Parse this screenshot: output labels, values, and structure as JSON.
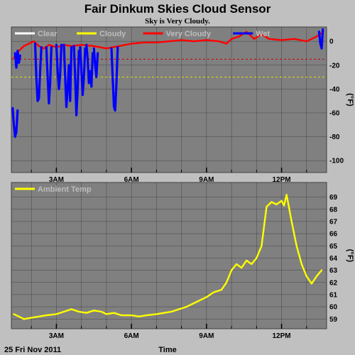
{
  "title": "Fair Dinkum Skies Cloud Sensor",
  "subtitle": "Sky is Very Cloudy.",
  "footer": {
    "date": "25 Fri Nov 2011",
    "xlabel": "Time"
  },
  "colors": {
    "background": "#c0c0c0",
    "plot_bg": "#808080",
    "clear": "#ffffff",
    "cloudy": "#ffff00",
    "very_cloudy": "#ff0000",
    "wet": "#0000ff",
    "ambient": "#ffff00",
    "threshold_red": "#c80000",
    "threshold_yellow": "#e0e000"
  },
  "chart_data": [
    {
      "type": "line",
      "ylabel": "(°F)",
      "ylim": [
        -110,
        12
      ],
      "yticks": [
        0,
        -20,
        -40,
        -60,
        -80,
        -100
      ],
      "xlim": [
        1.2,
        13.8
      ],
      "xticks": [
        {
          "x": 3,
          "label": "3AM"
        },
        {
          "x": 6,
          "label": "6AM"
        },
        {
          "x": 9,
          "label": "9AM"
        },
        {
          "x": 12,
          "label": "12PM"
        }
      ],
      "grid": true,
      "legend_position": "top",
      "legend": [
        {
          "name": "Clear",
          "color_key": "clear"
        },
        {
          "name": "Cloudy",
          "color_key": "cloudy"
        },
        {
          "name": "Very Cloudy",
          "color_key": "very_cloudy"
        },
        {
          "name": "Wet",
          "color_key": "wet"
        }
      ],
      "thresholds": [
        {
          "y": -15,
          "color_key": "threshold_red"
        },
        {
          "y": -30,
          "color_key": "threshold_yellow"
        }
      ],
      "series": [
        {
          "name": "Very Cloudy",
          "color_key": "very_cloudy",
          "x": [
            1.3,
            1.5,
            1.7,
            1.9,
            2.1,
            2.3,
            2.5,
            2.7,
            3.0,
            3.3,
            3.6,
            4.0,
            4.5,
            5.0,
            5.5,
            6.0,
            6.5,
            7.0,
            7.5,
            8.0,
            8.5,
            9.0,
            9.5,
            9.8,
            10.0,
            10.3,
            10.6,
            10.9,
            11.2,
            11.5,
            12.0,
            12.5,
            13.0,
            13.4,
            13.6
          ],
          "y": [
            -14,
            -8,
            -4,
            -2,
            0,
            -4,
            -6,
            -3,
            -5,
            -3,
            -4,
            -3,
            -4,
            -6,
            -4,
            -2,
            -1,
            -1,
            0,
            1,
            0,
            1,
            0,
            -2,
            2,
            4,
            8,
            2,
            6,
            2,
            1,
            2,
            0,
            4,
            7
          ]
        },
        {
          "name": "Wet",
          "color_key": "wet",
          "segments": [
            {
              "x": [
                1.25,
                1.3,
                1.35,
                1.4,
                1.45
              ],
              "y": [
                -56,
                -70,
                -80,
                -76,
                -58
              ]
            },
            {
              "x": [
                1.35,
                1.4,
                1.45,
                1.5,
                1.55
              ],
              "y": [
                -10,
                -22,
                -8,
                -18,
                -12
              ]
            },
            {
              "x": [
                2.15,
                2.2,
                2.25,
                2.3,
                2.35,
                2.4
              ],
              "y": [
                -2,
                -30,
                -50,
                -48,
                -25,
                -5
              ]
            },
            {
              "x": [
                2.6,
                2.65,
                2.7,
                2.75,
                2.8
              ],
              "y": [
                -5,
                -30,
                -52,
                -35,
                -5
              ]
            },
            {
              "x": [
                3.0,
                3.05,
                3.1,
                3.15,
                3.2
              ],
              "y": [
                -3,
                -25,
                -40,
                -28,
                -3
              ]
            },
            {
              "x": [
                3.3,
                3.35,
                3.4,
                3.45,
                3.5,
                3.55,
                3.6
              ],
              "y": [
                -3,
                -30,
                -55,
                -40,
                -20,
                -50,
                -5
              ]
            },
            {
              "x": [
                3.7,
                3.75,
                3.8,
                3.85,
                3.9
              ],
              "y": [
                -4,
                -30,
                -62,
                -40,
                -8
              ]
            },
            {
              "x": [
                3.95,
                4.0,
                4.05,
                4.1,
                4.15
              ],
              "y": [
                -5,
                -25,
                -45,
                -30,
                -6
              ]
            },
            {
              "x": [
                4.2,
                4.25,
                4.3,
                4.35,
                4.4,
                4.45
              ],
              "y": [
                -3,
                -15,
                -35,
                -25,
                -38,
                -10
              ]
            },
            {
              "x": [
                4.5,
                4.55,
                4.6,
                4.65
              ],
              "y": [
                -6,
                -20,
                -30,
                -10
              ]
            },
            {
              "x": [
                5.2,
                5.25,
                5.3,
                5.35,
                5.4,
                5.45
              ],
              "y": [
                -6,
                -30,
                -55,
                -58,
                -35,
                -5
              ]
            },
            {
              "x": [
                13.5,
                13.55,
                13.6,
                13.65
              ],
              "y": [
                8,
                -2,
                -6,
                10
              ]
            }
          ]
        }
      ]
    },
    {
      "type": "line",
      "ylabel": "(°F)",
      "ylim": [
        58.2,
        70.2
      ],
      "yticks": [
        69,
        68,
        67,
        66,
        65,
        64,
        63,
        62,
        61,
        60,
        59
      ],
      "xlim": [
        1.2,
        13.8
      ],
      "xticks": [
        {
          "x": 3,
          "label": "3AM"
        },
        {
          "x": 6,
          "label": "6AM"
        },
        {
          "x": 9,
          "label": "9AM"
        },
        {
          "x": 12,
          "label": "12PM"
        }
      ],
      "grid": true,
      "legend_position": "top-left",
      "legend": [
        {
          "name": "Ambient Temp",
          "color_key": "ambient"
        }
      ],
      "series": [
        {
          "name": "Ambient Temp",
          "color_key": "ambient",
          "x": [
            1.3,
            1.5,
            1.7,
            2.0,
            2.3,
            2.6,
            3.0,
            3.3,
            3.6,
            3.9,
            4.2,
            4.5,
            4.8,
            5.0,
            5.3,
            5.6,
            6.0,
            6.3,
            6.6,
            7.0,
            7.3,
            7.6,
            7.9,
            8.2,
            8.5,
            8.8,
            9.0,
            9.3,
            9.6,
            9.8,
            10.0,
            10.2,
            10.4,
            10.6,
            10.8,
            11.0,
            11.2,
            11.4,
            11.6,
            11.8,
            12.0,
            12.1,
            12.2,
            12.4,
            12.6,
            12.8,
            13.0,
            13.2,
            13.4,
            13.6
          ],
          "y": [
            59.4,
            59.2,
            59.0,
            59.1,
            59.2,
            59.3,
            59.4,
            59.6,
            59.8,
            59.6,
            59.5,
            59.7,
            59.6,
            59.4,
            59.5,
            59.3,
            59.3,
            59.2,
            59.3,
            59.4,
            59.5,
            59.6,
            59.8,
            60.0,
            60.3,
            60.6,
            60.8,
            61.2,
            61.4,
            62.0,
            63.0,
            63.5,
            63.2,
            63.8,
            63.5,
            64.0,
            65.0,
            68.2,
            68.6,
            68.4,
            68.7,
            68.3,
            69.2,
            67.0,
            65.0,
            63.5,
            62.5,
            61.9,
            62.5,
            63.0
          ]
        }
      ]
    }
  ]
}
